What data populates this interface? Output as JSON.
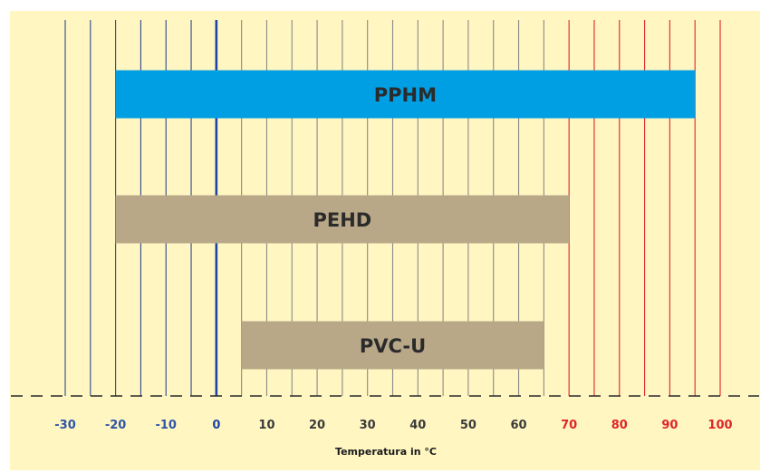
{
  "chart_data": {
    "type": "bar",
    "orientation": "horizontal-range",
    "title": "",
    "xlabel": "Temperatura in °C",
    "ylabel": "",
    "xlim": [
      -30,
      100
    ],
    "grid": true,
    "legend": "none",
    "x_ticks": [
      {
        "value": -30,
        "label": "-30"
      },
      {
        "value": -20,
        "label": "-20"
      },
      {
        "value": -10,
        "label": "-10"
      },
      {
        "value": 0,
        "label": "0"
      },
      {
        "value": 10,
        "label": "10"
      },
      {
        "value": 20,
        "label": "20"
      },
      {
        "value": 30,
        "label": "30"
      },
      {
        "value": 40,
        "label": "40"
      },
      {
        "value": 50,
        "label": "50"
      },
      {
        "value": 60,
        "label": "60"
      },
      {
        "value": 70,
        "label": "70"
      },
      {
        "value": 80,
        "label": "80"
      },
      {
        "value": 90,
        "label": "90"
      },
      {
        "value": 100,
        "label": "100"
      }
    ],
    "bars": [
      {
        "label": "PPHM",
        "start": -20,
        "end": 95,
        "color": "#009fe3"
      },
      {
        "label": "PEHD",
        "start": -20,
        "end": 70,
        "color": "#b8a888"
      },
      {
        "label": "PVC-U",
        "start": 5,
        "end": 65,
        "color": "#b8a888"
      }
    ]
  },
  "colors": {
    "background": "#fff6c2",
    "grid_cold": "#2c4a8c",
    "grid_zero": "#1c45a8",
    "grid_warm": "#8a8a86",
    "grid_hot": "#e0242a",
    "tick_cold": "#2f55a8",
    "tick_zero": "#1c45a8",
    "tick_warm": "#3a3a3a",
    "tick_hot": "#e0242a"
  }
}
